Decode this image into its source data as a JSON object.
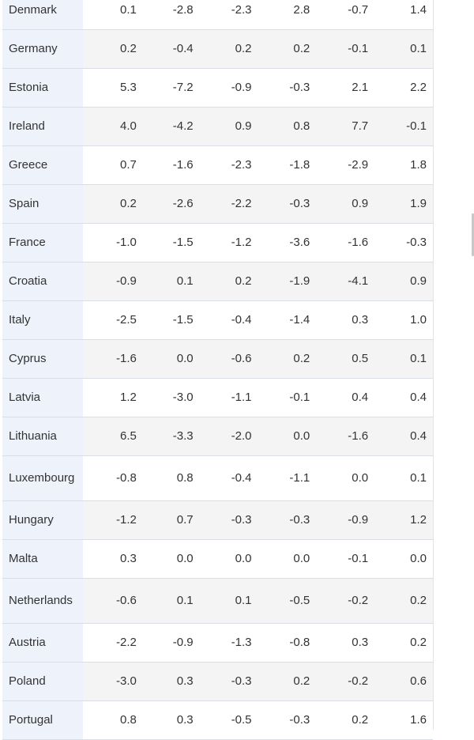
{
  "table": {
    "rows": [
      {
        "country": "Denmark",
        "values": [
          "0.1",
          "-2.8",
          "-2.3",
          "2.8",
          "-0.7",
          "1.4"
        ]
      },
      {
        "country": "Germany",
        "values": [
          "0.2",
          "-0.4",
          "0.2",
          "0.2",
          "-0.1",
          "0.1"
        ]
      },
      {
        "country": "Estonia",
        "values": [
          "5.3",
          "-7.2",
          "-0.9",
          "-0.3",
          "2.1",
          "2.2"
        ]
      },
      {
        "country": "Ireland",
        "values": [
          "4.0",
          "-4.2",
          "0.9",
          "0.8",
          "7.7",
          "-0.1"
        ]
      },
      {
        "country": "Greece",
        "values": [
          "0.7",
          "-1.6",
          "-2.3",
          "-1.8",
          "-2.9",
          "1.8"
        ]
      },
      {
        "country": "Spain",
        "values": [
          "0.2",
          "-2.6",
          "-2.2",
          "-0.3",
          "0.9",
          "1.9"
        ]
      },
      {
        "country": "France",
        "values": [
          "-1.0",
          "-1.5",
          "-1.2",
          "-3.6",
          "-1.6",
          "-0.3"
        ]
      },
      {
        "country": "Croatia",
        "values": [
          "-0.9",
          "0.1",
          "0.2",
          "-1.9",
          "-4.1",
          "0.9"
        ]
      },
      {
        "country": "Italy",
        "values": [
          "-2.5",
          "-1.5",
          "-0.4",
          "-1.4",
          "0.3",
          "1.0"
        ]
      },
      {
        "country": "Cyprus",
        "values": [
          "-1.6",
          "0.0",
          "-0.6",
          "0.2",
          "0.5",
          "0.1"
        ]
      },
      {
        "country": "Latvia",
        "values": [
          "1.2",
          "-3.0",
          "-1.1",
          "-0.1",
          "0.4",
          "0.4"
        ]
      },
      {
        "country": "Lithuania",
        "values": [
          "6.5",
          "-3.3",
          "-2.0",
          "0.0",
          "-1.6",
          "0.4"
        ]
      },
      {
        "country": "Luxembourg",
        "values": [
          "-0.8",
          "0.8",
          "-0.4",
          "-1.1",
          "0.0",
          "0.1"
        ]
      },
      {
        "country": "Hungary",
        "values": [
          "-1.2",
          "0.7",
          "-0.3",
          "-0.3",
          "-0.9",
          "1.2"
        ]
      },
      {
        "country": "Malta",
        "values": [
          "0.3",
          "0.0",
          "0.0",
          "0.0",
          "-0.1",
          "0.0"
        ]
      },
      {
        "country": "Netherlands",
        "values": [
          "-0.6",
          "0.1",
          "0.1",
          "-0.5",
          "-0.2",
          "0.2"
        ]
      },
      {
        "country": "Austria",
        "values": [
          "-2.2",
          "-0.9",
          "-1.3",
          "-0.8",
          "0.3",
          "0.2"
        ]
      },
      {
        "country": "Poland",
        "values": [
          "-3.0",
          "0.3",
          "-0.3",
          "0.2",
          "-0.2",
          "0.6"
        ]
      },
      {
        "country": "Portugal",
        "values": [
          "0.8",
          "0.3",
          "-0.5",
          "-0.3",
          "0.2",
          "1.6"
        ]
      }
    ]
  },
  "colors": {
    "country_column_bg": "#eef2fb",
    "stripe_bg": "#f4f4f4",
    "row_border": "#d8dde6",
    "text": "#333333"
  }
}
